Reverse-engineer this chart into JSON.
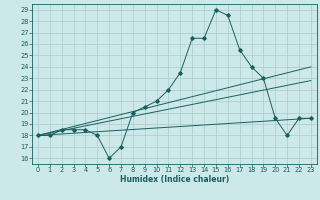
{
  "title": "",
  "xlabel": "Humidex (Indice chaleur)",
  "background_color": "#cce8e8",
  "grid_color": "#aacccc",
  "line_color": "#1a6060",
  "xlim": [
    -0.5,
    23.5
  ],
  "ylim": [
    15.5,
    29.5
  ],
  "xticks": [
    0,
    1,
    2,
    3,
    4,
    5,
    6,
    7,
    8,
    9,
    10,
    11,
    12,
    13,
    14,
    15,
    16,
    17,
    18,
    19,
    20,
    21,
    22,
    23
  ],
  "yticks": [
    16,
    17,
    18,
    19,
    20,
    21,
    22,
    23,
    24,
    25,
    26,
    27,
    28,
    29
  ],
  "curve1_x": [
    0,
    1,
    2,
    3,
    4,
    5,
    6,
    7,
    8,
    9,
    10,
    11,
    12,
    13,
    14,
    15,
    16,
    17,
    18,
    19,
    20,
    21,
    22,
    23
  ],
  "curve1_y": [
    18,
    18,
    18.5,
    18.5,
    18.5,
    18,
    16,
    17,
    20,
    20.5,
    21,
    22,
    23.5,
    26.5,
    26.5,
    29,
    28.5,
    25.5,
    24,
    23,
    19.5,
    18,
    19.5,
    19.5
  ],
  "line1_x": [
    0,
    23
  ],
  "line1_y": [
    18.0,
    24.0
  ],
  "line2_x": [
    0,
    23
  ],
  "line2_y": [
    18.0,
    22.8
  ],
  "line3_x": [
    0,
    23
  ],
  "line3_y": [
    18.0,
    19.5
  ],
  "xlabel_fontsize": 5.5,
  "tick_fontsize": 4.8,
  "linewidth": 0.7,
  "markersize": 1.8
}
